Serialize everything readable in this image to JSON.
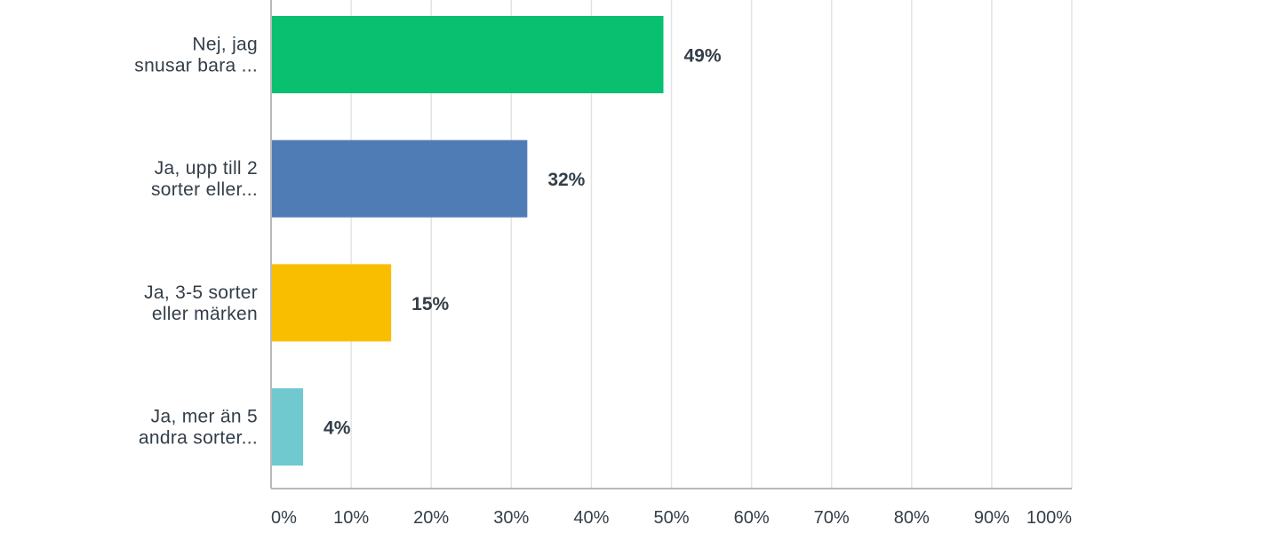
{
  "chart_data": {
    "type": "bar",
    "orientation": "horizontal",
    "categories": [
      [
        "Nej, jag",
        "snusar bara ..."
      ],
      [
        "Ja, upp till 2",
        "sorter eller..."
      ],
      [
        "Ja, 3-5 sorter",
        "eller märken"
      ],
      [
        "Ja, mer än 5",
        "andra sorter..."
      ]
    ],
    "values": [
      49,
      32,
      15,
      4
    ],
    "value_labels": [
      "49%",
      "32%",
      "15%",
      "4%"
    ],
    "colors": [
      "#09bf70",
      "#507cb6",
      "#f9be00",
      "#6fc9cf"
    ],
    "xlim": [
      0,
      100
    ],
    "xticks": [
      0,
      10,
      20,
      30,
      40,
      50,
      60,
      70,
      80,
      90,
      100
    ],
    "xtick_labels": [
      "0%",
      "10%",
      "20%",
      "30%",
      "40%",
      "50%",
      "60%",
      "70%",
      "80%",
      "90%",
      "100%"
    ],
    "grid": true,
    "legend": "none"
  }
}
